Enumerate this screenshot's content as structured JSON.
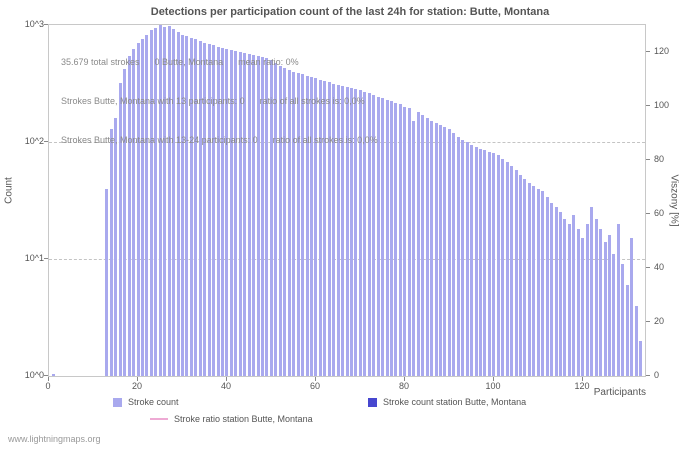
{
  "page": {
    "footer_link": "www.lightningmaps.org"
  },
  "chart_data": {
    "type": "bar",
    "title": "Detections per participation count of the last 24h for station: Butte, Montana",
    "xlabel": "Participants",
    "ylabel_left": "Count",
    "ylabel_right": "Viszony [%]",
    "xlim": [
      0,
      134
    ],
    "ylim_log": [
      1,
      1000
    ],
    "right_axis_max": 130,
    "x_ticks": [
      0,
      20,
      40,
      60,
      80,
      100,
      120
    ],
    "y_ticks_left": [
      "10^3",
      "10^2",
      "10^1",
      "10^0"
    ],
    "y_ticks_left_exponents": [
      3,
      2,
      1,
      0
    ],
    "y_ticks_right": [
      0,
      20,
      40,
      60,
      80,
      100,
      120
    ],
    "grid": "dashed-horizontal-decades",
    "legend_position": "bottom",
    "annotations": [
      "35.679 total strokes      0 Butte, Montana      mean ratio: 0%",
      "Strokes Butte, Montana with 13 participants: 0      ratio of all strokes is: 0,0%",
      "Strokes Butte, Montana with 13-24 participants: 0      ratio of all strokes is: 0,0%"
    ],
    "series": [
      {
        "name": "Stroke count",
        "color": "#a9a9ee",
        "x_start": 0,
        "values": [
          0,
          1,
          0,
          0,
          0,
          0,
          0,
          0,
          0,
          0,
          0,
          0,
          0,
          40,
          130,
          160,
          320,
          420,
          540,
          620,
          700,
          760,
          820,
          900,
          950,
          1000,
          970,
          990,
          920,
          870,
          830,
          800,
          780,
          760,
          730,
          700,
          690,
          670,
          650,
          640,
          620,
          610,
          600,
          590,
          580,
          570,
          555,
          545,
          530,
          520,
          500,
          470,
          450,
          430,
          410,
          400,
          390,
          380,
          370,
          360,
          350,
          340,
          335,
          325,
          315,
          310,
          300,
          295,
          290,
          285,
          280,
          270,
          260,
          250,
          245,
          240,
          230,
          225,
          215,
          210,
          200,
          195,
          150,
          180,
          170,
          160,
          150,
          145,
          140,
          135,
          130,
          120,
          110,
          105,
          100,
          95,
          90,
          88,
          85,
          82,
          80,
          78,
          72,
          68,
          62,
          58,
          52,
          48,
          45,
          42,
          40,
          38,
          34,
          30,
          28,
          25,
          22,
          20,
          24,
          18,
          15,
          20,
          28,
          22,
          18,
          14,
          16,
          11,
          20,
          9,
          6,
          15,
          4,
          2,
          0
        ]
      },
      {
        "name": "Stroke count station Butte, Montana",
        "color": "#4747cf",
        "values": []
      },
      {
        "name": "Stroke ratio station Butte, Montana",
        "color": "#eeaad4",
        "type": "line",
        "values": []
      }
    ],
    "legend": [
      {
        "label": "Stroke count",
        "color": "#a9a9ee",
        "swatch": "box"
      },
      {
        "label": "Stroke count station Butte, Montana",
        "color": "#4747cf",
        "swatch": "box"
      },
      {
        "label": "Stroke ratio station Butte, Montana",
        "color": "#eeaad4",
        "swatch": "line"
      }
    ]
  }
}
